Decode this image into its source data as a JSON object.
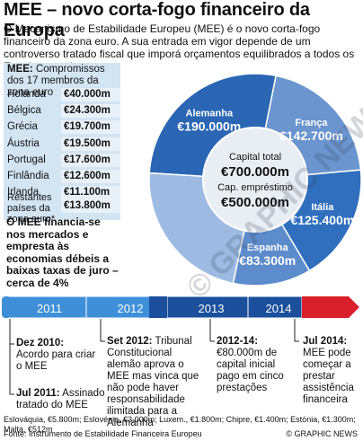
{
  "title": "MEE – novo corta-fogo financeiro da Europa",
  "intro": "O Mecanismo de Estabilidade Europeu (MEE) é o novo corta-fogo financeiro da zona euro. A sua entrada em vigor depende de um controverso tratado fiscal que imporá orçamentos equilibrados a todos os Estados-membros",
  "members_box": {
    "heading_label": "MEE:",
    "heading_text": " Compromissos dos 17 membros da zona euro",
    "rows": [
      {
        "country": "Holanda",
        "value": "€40.000m"
      },
      {
        "country": "Bélgica",
        "value": "€24.300m"
      },
      {
        "country": "Grécia",
        "value": "€19.700m"
      },
      {
        "country": "Áustria",
        "value": "€19.500m"
      },
      {
        "country": "Portugal",
        "value": "€17.600m"
      },
      {
        "country": "Finlândia",
        "value": "€12.600m"
      },
      {
        "country": "Irlanda",
        "value": "€11.100m"
      }
    ],
    "rest_label": "Restantes países da zona euro*",
    "rest_value": "€13.800m"
  },
  "funding_text": "O MEE financia-se nos mercados e empresta às economias débeis a baixas taxas de juro – cerca de 4%",
  "pie": {
    "slices": [
      {
        "name": "Alemanha",
        "value": "€190.000m",
        "amount": 190000,
        "color": "#2a66b3"
      },
      {
        "name": "França",
        "value": "€142.700m",
        "amount": 142700,
        "color": "#6a95cf"
      },
      {
        "name": "Itália",
        "value": "€125.400m",
        "amount": 125400,
        "color": "#2f6fbd"
      },
      {
        "name": "Espanha",
        "value": "€83.300m",
        "amount": 83300,
        "color": "#5d8ccc"
      },
      {
        "name": "Restantes",
        "value": "",
        "amount": 158600,
        "color": "#9dbbe2"
      }
    ],
    "center": {
      "capital_label": "Capital total",
      "capital_value": "€700.000m",
      "lending_label": "Cap. empréstimo",
      "lending_value": "€500.000m"
    }
  },
  "timeline": {
    "years": [
      "2011",
      "2012",
      "2013",
      "2014"
    ],
    "colors": {
      "light": "#3f8fd8",
      "dark": "#1b4f9c",
      "end": "#d9202a"
    }
  },
  "events": [
    {
      "date": "Dez 2010:",
      "text": " Acordo para criar o MEE"
    },
    {
      "date": "Jul 2011:",
      "text": " Assinado tratado do MEE"
    },
    {
      "date": "Set 2012:",
      "text": " Tribunal Constitucional alemão aprova o MEE mas vinca que não pode haver responsabilidade ilimitada para a Alemanha"
    },
    {
      "date": "2012-14:",
      "text": " €80.000m de capital inicial pago em cinco prestações"
    },
    {
      "date": "Jul 2014:",
      "text": " MEE pode começar a prestar assistência financeira"
    }
  ],
  "footnote": "Eslováquia, €5.800m; Eslovénia, €3.000m; Luxem., €1.800m; Chipre, €1.400m; Estónia, €1.300m; Malta, €512m",
  "source": "Fonte: Instrumento de Estabilidade Financeira Europeu",
  "credit": "© GRAPHIC NEWS",
  "watermark": "© GRAPHIC NEWS"
}
